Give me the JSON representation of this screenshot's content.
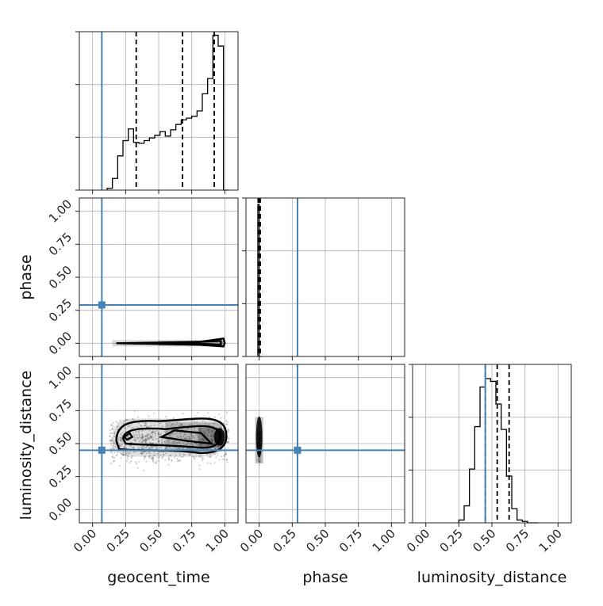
{
  "colors": {
    "truth": "#4682b4",
    "hist": "#000000",
    "grid": "#b0b0b0"
  },
  "chart_data": {
    "type": "corner",
    "parameters": [
      "geocent_time",
      "phase",
      "luminosity_distance"
    ],
    "tick_values": [
      0.0,
      0.25,
      0.5,
      0.75,
      1.0
    ],
    "tick_labels": [
      "0.00",
      "0.25",
      "0.50",
      "0.75",
      "1.00"
    ],
    "range": [
      -0.1,
      1.1
    ],
    "truths": [
      0.07,
      0.29,
      0.45
    ],
    "grid": true,
    "diagonal": [
      {
        "name": "geocent_time",
        "bin_edges": [
          0.11,
          0.15,
          0.19,
          0.23,
          0.27,
          0.31,
          0.35,
          0.39,
          0.43,
          0.47,
          0.51,
          0.55,
          0.59,
          0.63,
          0.67,
          0.71,
          0.75,
          0.79,
          0.83,
          0.87,
          0.91,
          0.95,
          0.99,
          1.03
        ],
        "counts": [
          2,
          13,
          38,
          55,
          68,
          53,
          52,
          55,
          58,
          61,
          65,
          60,
          67,
          73,
          78,
          80,
          82,
          88,
          107,
          124,
          172,
          160,
          0
        ],
        "quantiles": [
          0.33,
          0.68,
          0.92
        ],
        "ymax": 176
      },
      {
        "name": "phase",
        "bin_edges": [
          -0.01,
          0.0,
          0.01,
          0.02
        ],
        "counts": [
          96,
          0,
          0
        ],
        "quantiles": [
          -0.008,
          0.0,
          0.008
        ],
        "ymax": 100
      },
      {
        "name": "luminosity_distance",
        "bin_edges": [
          0.25,
          0.29,
          0.33,
          0.37,
          0.41,
          0.45,
          0.49,
          0.53,
          0.57,
          0.61,
          0.65,
          0.69,
          0.73,
          0.77,
          0.81,
          0.85
        ],
        "counts": [
          2,
          12,
          38,
          68,
          96,
          102,
          100,
          84,
          66,
          33,
          10,
          2,
          1,
          0,
          0
        ],
        "quantiles": [
          0.45,
          0.54,
          0.63
        ],
        "ymax": 112
      }
    ],
    "pairs": [
      {
        "x": "geocent_time",
        "y": "phase",
        "x_extent": [
          0.15,
          1.0
        ],
        "y_extent": [
          -0.01,
          0.02
        ],
        "density_peak_x": 0.96
      },
      {
        "x": "geocent_time",
        "y": "luminosity_distance",
        "x_extent": [
          0.13,
          1.03
        ],
        "y_extent": [
          0.27,
          0.77
        ],
        "density_peak_x": 0.96,
        "density_peak_y": 0.55
      },
      {
        "x": "phase",
        "y": "luminosity_distance",
        "x_extent": [
          -0.01,
          0.01
        ],
        "y_extent": [
          0.3,
          0.7
        ],
        "density_peak_y": 0.55
      }
    ]
  }
}
